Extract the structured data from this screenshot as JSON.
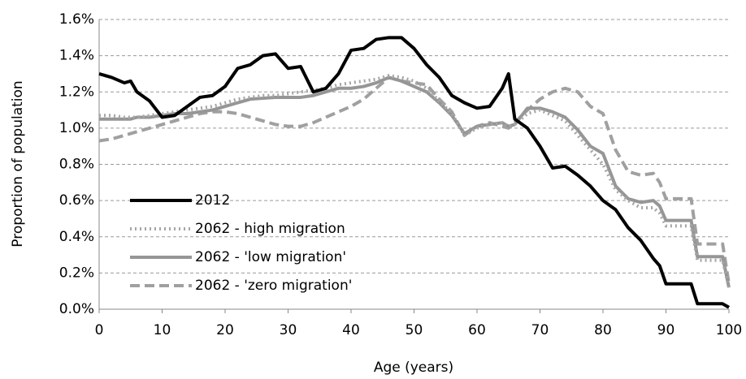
{
  "chart_data": {
    "type": "line",
    "xlabel": "Age (years)",
    "ylabel": "Proportion of population",
    "x": [
      0,
      2,
      4,
      5,
      6,
      8,
      10,
      12,
      14,
      16,
      18,
      20,
      22,
      24,
      26,
      28,
      30,
      32,
      34,
      36,
      38,
      40,
      42,
      44,
      46,
      48,
      50,
      52,
      54,
      56,
      58,
      60,
      62,
      64,
      65,
      66,
      68,
      70,
      72,
      74,
      76,
      78,
      80,
      82,
      84,
      86,
      88,
      89,
      90,
      92,
      94,
      95,
      96,
      98,
      99,
      100
    ],
    "series": [
      {
        "name": "2012",
        "color": "#000000",
        "dash": "solid",
        "width": 4,
        "values": [
          1.3,
          1.28,
          1.25,
          1.26,
          1.2,
          1.15,
          1.06,
          1.07,
          1.12,
          1.17,
          1.18,
          1.23,
          1.33,
          1.35,
          1.4,
          1.41,
          1.33,
          1.34,
          1.2,
          1.22,
          1.3,
          1.43,
          1.44,
          1.49,
          1.5,
          1.5,
          1.44,
          1.35,
          1.28,
          1.18,
          1.14,
          1.11,
          1.12,
          1.22,
          1.3,
          1.05,
          1.0,
          0.9,
          0.78,
          0.79,
          0.74,
          0.68,
          0.6,
          0.55,
          0.45,
          0.38,
          0.28,
          0.24,
          0.14,
          0.14,
          0.14,
          0.03,
          0.03,
          0.03,
          0.03,
          0.01
        ]
      },
      {
        "name": "2062 - high migration",
        "color": "#a6a6a6",
        "dash": "dotted",
        "width": 4,
        "values": [
          1.07,
          1.07,
          1.06,
          1.06,
          1.06,
          1.07,
          1.08,
          1.09,
          1.1,
          1.11,
          1.12,
          1.14,
          1.16,
          1.17,
          1.18,
          1.18,
          1.19,
          1.2,
          1.21,
          1.22,
          1.24,
          1.25,
          1.26,
          1.27,
          1.29,
          1.28,
          1.26,
          1.22,
          1.15,
          1.08,
          0.96,
          1.0,
          1.02,
          1.03,
          1.01,
          1.02,
          1.08,
          1.1,
          1.07,
          1.04,
          0.96,
          0.88,
          0.8,
          0.66,
          0.6,
          0.56,
          0.56,
          0.53,
          0.46,
          0.46,
          0.46,
          0.27,
          0.27,
          0.27,
          0.27,
          0.12
        ]
      },
      {
        "name": "2062 - 'low migration'",
        "color": "#969696",
        "dash": "solid",
        "width": 4,
        "values": [
          1.05,
          1.05,
          1.05,
          1.05,
          1.06,
          1.06,
          1.07,
          1.08,
          1.08,
          1.09,
          1.1,
          1.12,
          1.14,
          1.16,
          1.165,
          1.17,
          1.17,
          1.17,
          1.18,
          1.2,
          1.22,
          1.22,
          1.23,
          1.25,
          1.28,
          1.26,
          1.23,
          1.2,
          1.14,
          1.07,
          0.97,
          1.01,
          1.02,
          1.03,
          1.01,
          1.02,
          1.11,
          1.11,
          1.09,
          1.06,
          0.99,
          0.9,
          0.86,
          0.68,
          0.61,
          0.59,
          0.6,
          0.57,
          0.49,
          0.49,
          0.49,
          0.29,
          0.29,
          0.29,
          0.29,
          0.12
        ]
      },
      {
        "name": "2062 - 'zero migration'",
        "color": "#a0a0a0",
        "dash": "dashed",
        "width": 4,
        "values": [
          0.93,
          0.94,
          0.96,
          0.97,
          0.98,
          1.0,
          1.02,
          1.04,
          1.06,
          1.08,
          1.09,
          1.09,
          1.08,
          1.06,
          1.04,
          1.02,
          1.01,
          1.01,
          1.03,
          1.06,
          1.09,
          1.12,
          1.16,
          1.22,
          1.28,
          1.26,
          1.25,
          1.24,
          1.16,
          1.09,
          0.96,
          1.01,
          1.03,
          1.01,
          1.0,
          1.03,
          1.1,
          1.16,
          1.2,
          1.22,
          1.2,
          1.12,
          1.08,
          0.88,
          0.76,
          0.74,
          0.75,
          0.7,
          0.61,
          0.61,
          0.61,
          0.36,
          0.36,
          0.36,
          0.36,
          0.14
        ]
      }
    ],
    "xlim": [
      0,
      100
    ],
    "xticks": [
      0,
      10,
      20,
      30,
      40,
      50,
      60,
      70,
      80,
      90,
      100
    ],
    "ylim": [
      0,
      1.6
    ],
    "yticks": [
      {
        "value": 0,
        "label": "0.0%"
      },
      {
        "value": 0.2,
        "label": "0.2%"
      },
      {
        "value": 0.4,
        "label": "0.4%"
      },
      {
        "value": 0.6,
        "label": "0.6%"
      },
      {
        "value": 0.8,
        "label": "0.8%"
      },
      {
        "value": 1.0,
        "label": "1.0%"
      },
      {
        "value": 1.2,
        "label": "1.2%"
      },
      {
        "value": 1.4,
        "label": "1.4%"
      },
      {
        "value": 1.6,
        "label": "1.6%"
      }
    ],
    "grid": true,
    "legend": "lower left"
  }
}
